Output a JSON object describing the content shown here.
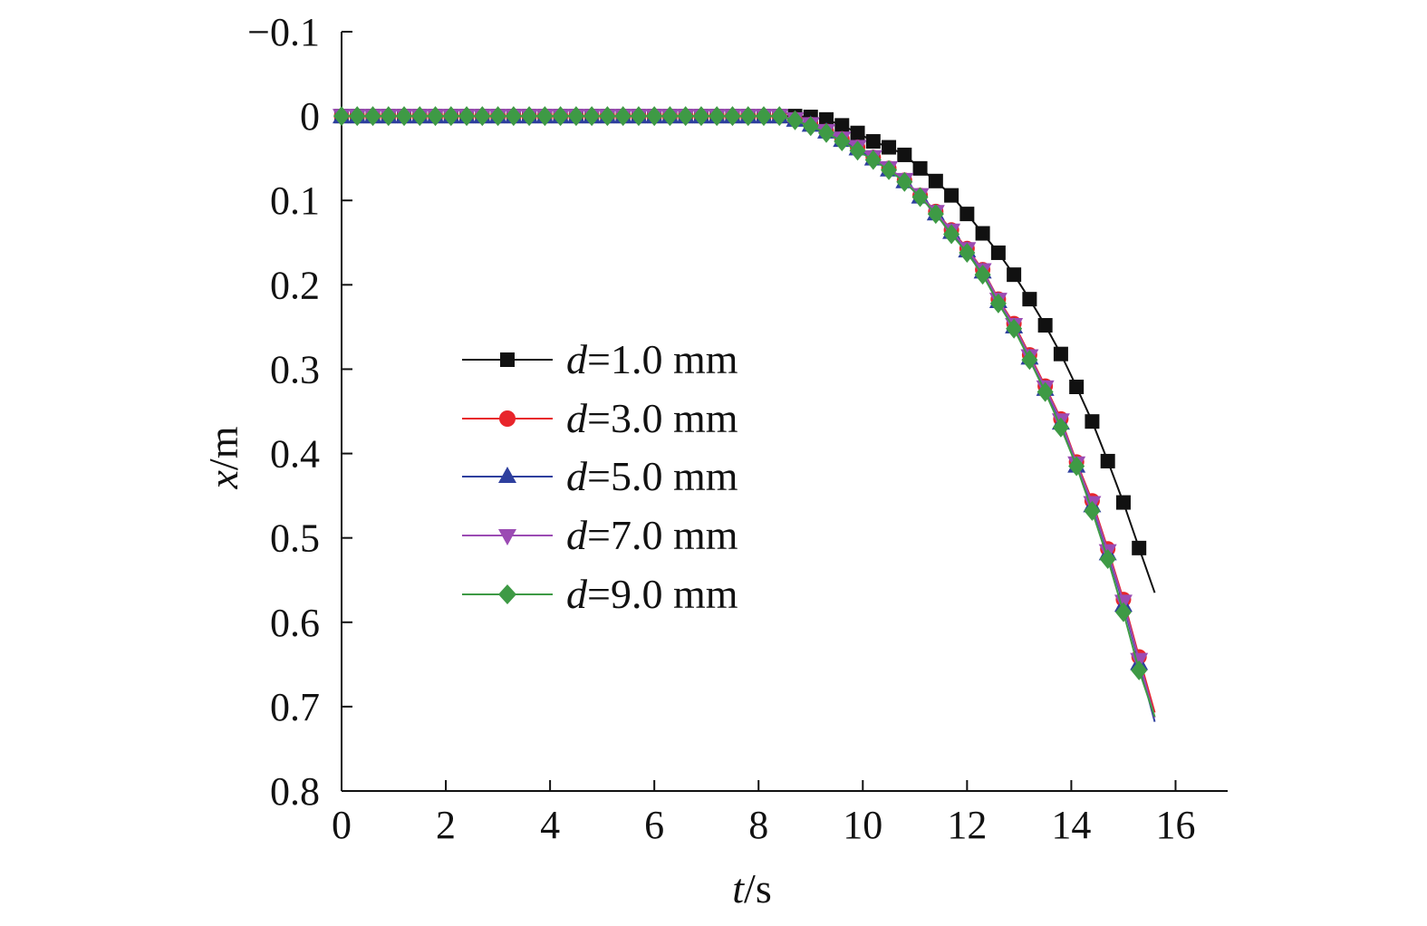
{
  "chart_data": {
    "type": "line",
    "xlabel": {
      "var": "t",
      "unit": "/s"
    },
    "ylabel": {
      "var": "x",
      "unit": "/m"
    },
    "xlim": [
      0,
      17
    ],
    "ylim": [
      -0.1,
      0.8
    ],
    "y_inverted": true,
    "xticks": [
      0,
      2,
      4,
      6,
      8,
      10,
      12,
      14,
      16
    ],
    "xtick_labels": [
      "0",
      "2",
      "4",
      "6",
      "8",
      "10",
      "12",
      "14",
      "16"
    ],
    "yticks": [
      -0.1,
      0,
      0.1,
      0.2,
      0.3,
      0.4,
      0.5,
      0.6,
      0.7,
      0.8
    ],
    "ytick_labels": [
      "−0.1",
      "0",
      "0.1",
      "0.2",
      "0.3",
      "0.4",
      "0.5",
      "0.6",
      "0.7",
      "0.8"
    ],
    "grid": false,
    "legend_position": "center-left",
    "series": [
      {
        "name": "d=1.0 mm",
        "name_var": "d",
        "name_rest": "=1.0 mm",
        "color": "#111111",
        "marker": "square",
        "x": [
          0,
          0.3,
          0.6,
          0.9,
          1.2,
          1.5,
          1.8,
          2.1,
          2.4,
          2.7,
          3.0,
          3.3,
          3.6,
          3.9,
          4.2,
          4.5,
          4.8,
          5.1,
          5.4,
          5.7,
          6.0,
          6.3,
          6.6,
          6.9,
          7.2,
          7.5,
          7.8,
          8.1,
          8.4,
          8.7,
          9.0,
          9.3,
          9.6,
          9.9,
          10.2,
          10.5,
          10.8,
          11.1,
          11.4,
          11.7,
          12.0,
          12.3,
          12.6,
          12.9,
          13.2,
          13.5,
          13.8,
          14.1,
          14.4,
          14.7,
          15.0,
          15.3,
          15.6
        ],
        "y": [
          0,
          0,
          0,
          0,
          0,
          0,
          0,
          0,
          0,
          0,
          0,
          0,
          0,
          0,
          0,
          0,
          0,
          0,
          0,
          0,
          0,
          0,
          0,
          0,
          0,
          0,
          0,
          0,
          0,
          0,
          0.001,
          0.004,
          0.011,
          0.02,
          0.03,
          0.037,
          0.046,
          0.062,
          0.077,
          0.094,
          0.116,
          0.139,
          0.162,
          0.188,
          0.217,
          0.248,
          0.282,
          0.321,
          0.362,
          0.409,
          0.458,
          0.512,
          0.565
        ]
      },
      {
        "name": "d=3.0 mm",
        "name_var": "d",
        "name_rest": "=3.0 mm",
        "color": "#e8252b",
        "marker": "circle",
        "x": [
          0,
          0.3,
          0.6,
          0.9,
          1.2,
          1.5,
          1.8,
          2.1,
          2.4,
          2.7,
          3.0,
          3.3,
          3.6,
          3.9,
          4.2,
          4.5,
          4.8,
          5.1,
          5.4,
          5.7,
          6.0,
          6.3,
          6.6,
          6.9,
          7.2,
          7.5,
          7.8,
          8.1,
          8.4,
          8.7,
          9.0,
          9.3,
          9.6,
          9.9,
          10.2,
          10.5,
          10.8,
          11.1,
          11.4,
          11.7,
          12.0,
          12.3,
          12.6,
          12.9,
          13.2,
          13.5,
          13.8,
          14.1,
          14.4,
          14.7,
          15.0,
          15.3,
          15.6
        ],
        "y": [
          0,
          0,
          0,
          0,
          0,
          0,
          0,
          0,
          0,
          0,
          0,
          0,
          0,
          0,
          0,
          0,
          0,
          0,
          0,
          0,
          0,
          0,
          0,
          0,
          0,
          0,
          0,
          0,
          0,
          0.004,
          0.01,
          0.018,
          0.027,
          0.037,
          0.049,
          0.062,
          0.076,
          0.094,
          0.113,
          0.135,
          0.157,
          0.182,
          0.217,
          0.246,
          0.283,
          0.32,
          0.359,
          0.41,
          0.456,
          0.513,
          0.573,
          0.641,
          0.707
        ]
      },
      {
        "name": "d=5.0 mm",
        "name_var": "d",
        "name_rest": "=5.0 mm",
        "color": "#2e3f9e",
        "marker": "triangle-up",
        "x": [
          0,
          0.3,
          0.6,
          0.9,
          1.2,
          1.5,
          1.8,
          2.1,
          2.4,
          2.7,
          3.0,
          3.3,
          3.6,
          3.9,
          4.2,
          4.5,
          4.8,
          5.1,
          5.4,
          5.7,
          6.0,
          6.3,
          6.6,
          6.9,
          7.2,
          7.5,
          7.8,
          8.1,
          8.4,
          8.7,
          9.0,
          9.3,
          9.6,
          9.9,
          10.2,
          10.5,
          10.8,
          11.1,
          11.4,
          11.7,
          12.0,
          12.3,
          12.6,
          12.9,
          13.2,
          13.5,
          13.8,
          14.1,
          14.4,
          14.7,
          15.0,
          15.3,
          15.6
        ],
        "y": [
          0,
          0,
          0,
          0,
          0,
          0,
          0,
          0,
          0,
          0,
          0,
          0,
          0,
          0,
          0,
          0,
          0,
          0,
          0,
          0,
          0,
          0,
          0,
          0,
          0,
          0,
          0,
          0,
          0,
          0.004,
          0.01,
          0.018,
          0.028,
          0.038,
          0.05,
          0.063,
          0.077,
          0.095,
          0.115,
          0.137,
          0.159,
          0.184,
          0.219,
          0.249,
          0.286,
          0.323,
          0.363,
          0.414,
          0.461,
          0.518,
          0.579,
          0.648,
          0.718
        ]
      },
      {
        "name": "d=7.0 mm",
        "name_var": "d",
        "name_rest": "=7.0 mm",
        "color": "#9b4bb3",
        "marker": "triangle-down",
        "x": [
          0,
          0.3,
          0.6,
          0.9,
          1.2,
          1.5,
          1.8,
          2.1,
          2.4,
          2.7,
          3.0,
          3.3,
          3.6,
          3.9,
          4.2,
          4.5,
          4.8,
          5.1,
          5.4,
          5.7,
          6.0,
          6.3,
          6.6,
          6.9,
          7.2,
          7.5,
          7.8,
          8.1,
          8.4,
          8.7,
          9.0,
          9.3,
          9.6,
          9.9,
          10.2,
          10.5,
          10.8,
          11.1,
          11.4,
          11.7,
          12.0,
          12.3,
          12.6,
          12.9,
          13.2,
          13.5,
          13.8,
          14.1,
          14.4,
          14.7,
          15.0,
          15.3,
          15.6
        ],
        "y": [
          0,
          0,
          0,
          0,
          0,
          0,
          0,
          0,
          0,
          0,
          0,
          0,
          0,
          0,
          0,
          0,
          0,
          0,
          0,
          0,
          0,
          0,
          0,
          0,
          0,
          0,
          0,
          0,
          0,
          0.004,
          0.01,
          0.018,
          0.027,
          0.037,
          0.049,
          0.062,
          0.076,
          0.094,
          0.114,
          0.136,
          0.158,
          0.183,
          0.218,
          0.248,
          0.285,
          0.322,
          0.361,
          0.412,
          0.459,
          0.516,
          0.576,
          0.645,
          0.713
        ]
      },
      {
        "name": "d=9.0 mm",
        "name_var": "d",
        "name_rest": "=9.0 mm",
        "color": "#3e9a45",
        "marker": "diamond",
        "x": [
          0,
          0.3,
          0.6,
          0.9,
          1.2,
          1.5,
          1.8,
          2.1,
          2.4,
          2.7,
          3.0,
          3.3,
          3.6,
          3.9,
          4.2,
          4.5,
          4.8,
          5.1,
          5.4,
          5.7,
          6.0,
          6.3,
          6.6,
          6.9,
          7.2,
          7.5,
          7.8,
          8.1,
          8.4,
          8.7,
          9.0,
          9.3,
          9.6,
          9.9,
          10.2,
          10.5,
          10.8,
          11.1,
          11.4,
          11.7,
          12.0,
          12.3,
          12.6,
          12.9,
          13.2,
          13.5,
          13.8,
          14.1,
          14.4,
          14.7,
          15.0,
          15.3,
          15.6
        ],
        "y": [
          0,
          0,
          0,
          0,
          0,
          0,
          0,
          0,
          0,
          0,
          0,
          0,
          0,
          0,
          0,
          0,
          0,
          0,
          0,
          0,
          0,
          0,
          0,
          0,
          0,
          0,
          0,
          0,
          0,
          0.005,
          0.012,
          0.02,
          0.03,
          0.041,
          0.052,
          0.064,
          0.078,
          0.096,
          0.116,
          0.14,
          0.162,
          0.188,
          0.222,
          0.252,
          0.289,
          0.327,
          0.369,
          0.415,
          0.468,
          0.525,
          0.588,
          0.657,
          0.712
        ]
      }
    ]
  }
}
